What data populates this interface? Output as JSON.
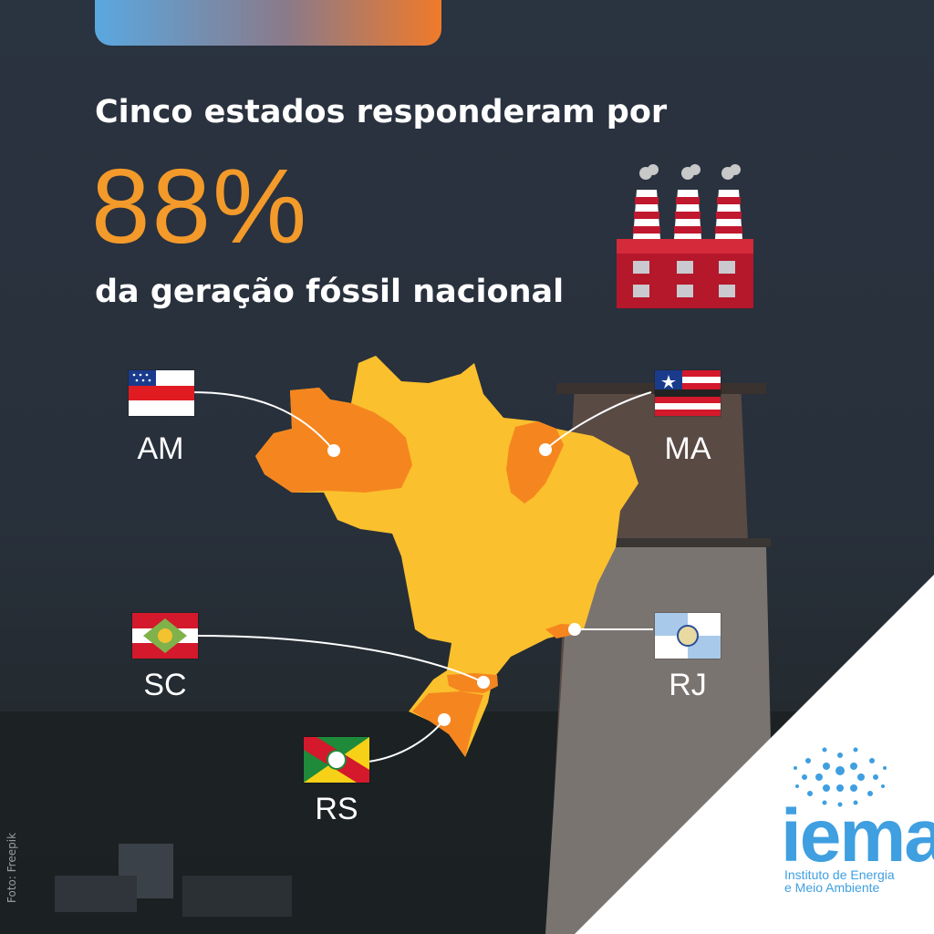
{
  "headline": "Cinco estados responderam por",
  "percentage": "88%",
  "subheadline": "da geração fóssil nacional",
  "states": [
    {
      "code": "AM"
    },
    {
      "code": "MA"
    },
    {
      "code": "SC"
    },
    {
      "code": "RJ"
    },
    {
      "code": "RS"
    }
  ],
  "logo": {
    "name": "iema",
    "line1": "Instituto de Energia",
    "line2": "e Meio Ambiente"
  },
  "photo_credit": "Foto: Freepik",
  "colors": {
    "accent_orange": "#f39a2a",
    "map_yellow": "#fbc02d",
    "map_highlight": "#f5861f",
    "factory_red": "#b5172b",
    "logo_blue": "#3f9fe0"
  }
}
